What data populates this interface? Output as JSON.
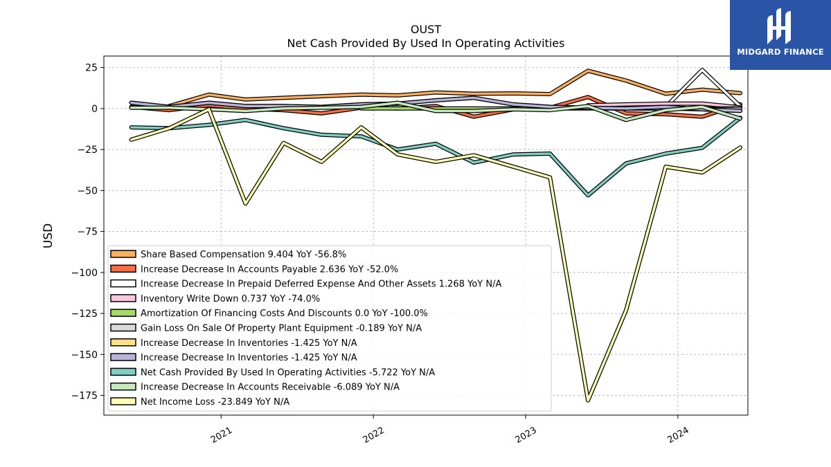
{
  "brand": {
    "name": "MIDGARD FINANCE",
    "bg_color": "#2a55a6"
  },
  "chart_data": {
    "type": "line",
    "title": "OUST",
    "subtitle": "Net Cash Provided By Used In Operating Activities",
    "ylabel": "USD",
    "xlabel": "",
    "ylim": [
      -187,
      32
    ],
    "xlim": [
      2020.23,
      2024.46
    ],
    "yticks": [
      25,
      0,
      -25,
      -50,
      -75,
      -100,
      -125,
      -150,
      -175
    ],
    "ytick_labels": [
      "25",
      "0",
      "−25",
      "−50",
      "−75",
      "−100",
      "−125",
      "−150",
      "−175"
    ],
    "xticks": [
      2021.0,
      2022.0,
      2023.0,
      2024.0
    ],
    "xtick_labels": [
      "2021",
      "2022",
      "2023",
      "2024"
    ],
    "grid": true,
    "legend_position": "lower-left",
    "x": [
      2020.41,
      2020.66,
      2020.92,
      2021.16,
      2021.41,
      2021.66,
      2021.92,
      2022.16,
      2022.41,
      2022.66,
      2022.92,
      2023.16,
      2023.41,
      2023.66,
      2023.92,
      2024.16,
      2024.41
    ],
    "series": [
      {
        "name": "Share Based Compensation",
        "color": "#fdae61",
        "legend": "Share Based Compensation  9.404 YoY -56.8%",
        "values": [
          null,
          1.5,
          8.5,
          5.5,
          6.5,
          7.5,
          8.5,
          8.0,
          9.8,
          9.0,
          9.2,
          8.8,
          23.0,
          17.0,
          9.0,
          11.5,
          9.4
        ]
      },
      {
        "name": "Increase Decrease In Accounts Payable",
        "color": "#f46d43",
        "legend": "Increase Decrease In Accounts Payable  2.636 YoY -52.0%",
        "values": [
          1.0,
          -1.0,
          2.0,
          0.0,
          -1.0,
          -3.0,
          0.5,
          0.0,
          1.5,
          -5.0,
          -0.5,
          0.5,
          7.0,
          -3.0,
          -3.5,
          -5.0,
          2.6
        ]
      },
      {
        "name": "Increase Decrease In Prepaid Deferred Expense And Other Assets",
        "color": "#ffffff",
        "legend": "Increase Decrease In Prepaid Deferred Expense And Other Assets  1.268 YoY N/A",
        "values": [
          null,
          null,
          null,
          null,
          null,
          null,
          null,
          null,
          null,
          null,
          null,
          null,
          null,
          null,
          1.0,
          23.5,
          1.3
        ]
      },
      {
        "name": "Inventory Write Down",
        "color": "#f9c6de",
        "legend": "Inventory Write Down  0.737 YoY -74.0%",
        "values": [
          null,
          null,
          null,
          null,
          null,
          null,
          null,
          null,
          null,
          null,
          null,
          null,
          2.0,
          2.5,
          3.0,
          3.0,
          0.7
        ]
      },
      {
        "name": "Amortization Of Financing Costs And Discounts",
        "color": "#a6d96a",
        "legend": "Amortization Of Financing Costs And Discounts  0.0 YoY -100.0%",
        "values": [
          null,
          null,
          null,
          null,
          null,
          null,
          0.0,
          0.0,
          0.0,
          0.0,
          0.0,
          0.0,
          0.0,
          0.0,
          0.0,
          0.0,
          0.0
        ]
      },
      {
        "name": "Gain Loss On Sale Of Property Plant Equipment",
        "color": "#d9d9d9",
        "legend": "Gain Loss On Sale Of Property Plant Equipment  -0.189 YoY N/A",
        "values": [
          null,
          null,
          null,
          null,
          null,
          null,
          null,
          null,
          null,
          null,
          null,
          null,
          null,
          0.0,
          0.0,
          -0.5,
          -0.2
        ]
      },
      {
        "name": "Increase Decrease In Inventories",
        "color": "#fee08b",
        "legend": "Increase Decrease In Inventories  -1.425 YoY N/A",
        "values": [
          3.5,
          1.0,
          3.5,
          1.5,
          1.5,
          1.0,
          2.5,
          3.0,
          5.0,
          6.5,
          2.5,
          1.0,
          0.5,
          0.0,
          1.0,
          -0.5,
          -1.4
        ]
      },
      {
        "name": "Increase Decrease In Inventories",
        "color": "#b8b3d8",
        "legend": "Increase Decrease In Inventories  -1.425 YoY N/A",
        "values": [
          3.5,
          1.0,
          3.5,
          1.5,
          1.5,
          1.0,
          2.5,
          3.0,
          5.0,
          6.5,
          2.5,
          1.0,
          0.5,
          0.0,
          1.0,
          -0.5,
          -1.4
        ]
      },
      {
        "name": "Net Cash Provided By Used In Operating Activities",
        "color": "#80cdc1",
        "legend": "Net Cash Provided By Used In Operating Activities  -5.722 YoY N/A",
        "values": [
          -11.5,
          -12.0,
          -10.0,
          -7.0,
          -12.0,
          -16.0,
          -17.0,
          -25.0,
          -21.5,
          -33.0,
          -28.0,
          -27.5,
          -53.0,
          -33.5,
          -27.5,
          -24.0,
          -5.7
        ]
      },
      {
        "name": "Increase Decrease In Accounts Receivable",
        "color": "#c7e9c0",
        "legend": "Increase Decrease In Accounts Receivable  -6.089 YoY N/A",
        "values": [
          0.5,
          0.5,
          -0.5,
          -1.5,
          0.0,
          0.5,
          1.0,
          3.5,
          -1.5,
          -1.5,
          -0.5,
          -1.0,
          1.5,
          -7.0,
          -1.0,
          1.0,
          -6.1
        ]
      },
      {
        "name": "Net Income Loss",
        "color": "#ffffb3",
        "legend": "Net Income Loss  -23.849 YoY N/A",
        "values": [
          -19.0,
          -12.0,
          -0.5,
          -58.0,
          -21.0,
          -32.5,
          -11.5,
          -28.0,
          -32.5,
          -28.5,
          -35.5,
          -42.0,
          -178.0,
          -123.0,
          -35.5,
          -39.0,
          -23.8
        ]
      }
    ]
  }
}
